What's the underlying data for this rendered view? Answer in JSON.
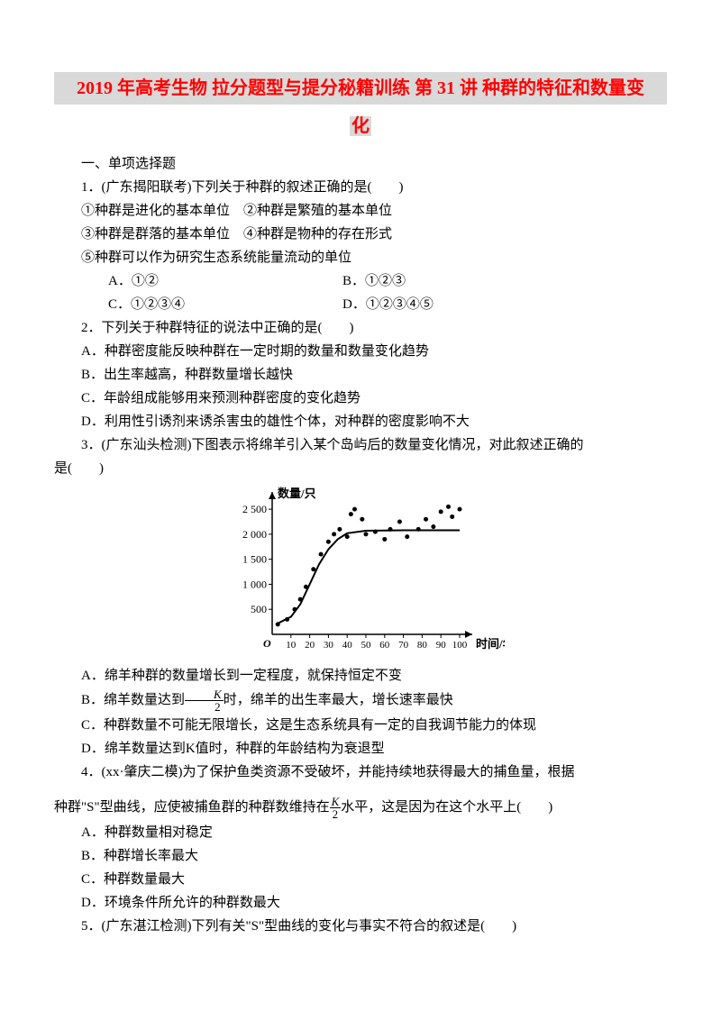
{
  "title_line1": "2019 年高考生物 拉分题型与提分秘籍训练 第 31 讲 种群的特征和数量变",
  "title_line2": "化",
  "section1": "一、单项选择题",
  "q1": {
    "stem": "1．(广东揭阳联考)下列关于种群的叙述正确的是(　　)",
    "s1": "①种群是进化的基本单位　②种群是繁殖的基本单位",
    "s2": "③种群是群落的基本单位　④种群是物种的存在形式",
    "s3": "⑤种群可以作为研究生态系统能量流动的单位",
    "A": "A．①②",
    "B": "B．①②③",
    "C": "C．①②③④",
    "D": "D．①②③④⑤"
  },
  "q2": {
    "stem": "2．下列关于种群特征的说法中正确的是(　　)",
    "A": "A．种群密度能反映种群在一定时期的数量和数量变化趋势",
    "B": "B．出生率越高，种群数量增长越快",
    "C": "C．年龄组成能够用来预测种群密度的变化趋势",
    "D": "D．利用性引诱剂来诱杀害虫的雄性个体，对种群的密度影响不大"
  },
  "q3": {
    "stem_a": "3．(广东汕头检测)下图表示将绵羊引入某个岛屿后的数量变化情况，对此叙述正确的",
    "stem_b": "是(　　)",
    "A": "A．绵羊种群的数量增长到一定程度，就保持恒定不变",
    "B_pre": "B．绵羊数量达到",
    "B_post": "时，绵羊的出生率最大，增长速率最快",
    "C": "C．种群数量不可能无限增长，这是生态系统具有一定的自我调节能力的体现",
    "D": "D．绵羊数量达到K值时，种群的年龄结构为衰退型"
  },
  "q4": {
    "stem_a": "4．(xx·肇庆二模)为了保护鱼类资源不受破坏，并能持续地获得最大的捕鱼量，根据",
    "stem_b_pre": "种群\"S\"型曲线，应使被捕鱼群的种群数维持在",
    "stem_b_post": "水平，这是因为在这个水平上(　　)",
    "A": "A．种群数量相对稳定",
    "B": "B．种群增长率最大",
    "C": "C．种群数量最大",
    "D": "D．环境条件所允许的种群数最大"
  },
  "q5": {
    "stem": "5．(广东湛江检测)下列有关\"S\"型曲线的变化与事实不符合的叙述是(　　)"
  },
  "chart": {
    "type": "scatter_with_curve",
    "y_label": "数量/只",
    "x_label": "时间/年",
    "x_ticks": [
      "10",
      "20",
      "30",
      "40",
      "50",
      "60",
      "70",
      "80",
      "90",
      "100"
    ],
    "y_ticks": [
      "500",
      "1 000",
      "1 500",
      "2 000",
      "2 500"
    ],
    "xlim": [
      0,
      100
    ],
    "ylim": [
      0,
      2700
    ],
    "axis_color": "#000000",
    "curve_color": "#000000",
    "point_color": "#000000",
    "background": "#ffffff",
    "font_size": 12,
    "curve_width": 2,
    "point_radius": 2.5,
    "curve_points": [
      [
        2,
        200
      ],
      [
        10,
        350
      ],
      [
        15,
        600
      ],
      [
        20,
        1000
      ],
      [
        25,
        1400
      ],
      [
        30,
        1700
      ],
      [
        35,
        1900
      ],
      [
        40,
        2020
      ],
      [
        50,
        2070
      ],
      [
        70,
        2080
      ],
      [
        100,
        2080
      ]
    ],
    "scatter_points": [
      [
        3,
        200
      ],
      [
        8,
        300
      ],
      [
        12,
        500
      ],
      [
        15,
        700
      ],
      [
        18,
        950
      ],
      [
        22,
        1300
      ],
      [
        26,
        1600
      ],
      [
        30,
        1850
      ],
      [
        33,
        2000
      ],
      [
        36,
        2100
      ],
      [
        40,
        1950
      ],
      [
        42,
        2400
      ],
      [
        44,
        2500
      ],
      [
        48,
        2300
      ],
      [
        50,
        2000
      ],
      [
        55,
        2050
      ],
      [
        60,
        1900
      ],
      [
        63,
        2100
      ],
      [
        68,
        2250
      ],
      [
        72,
        1950
      ],
      [
        78,
        2100
      ],
      [
        82,
        2300
      ],
      [
        86,
        2150
      ],
      [
        90,
        2450
      ],
      [
        94,
        2550
      ],
      [
        96,
        2350
      ],
      [
        100,
        2500
      ]
    ]
  },
  "frac": {
    "num": "K",
    "den": "2"
  }
}
